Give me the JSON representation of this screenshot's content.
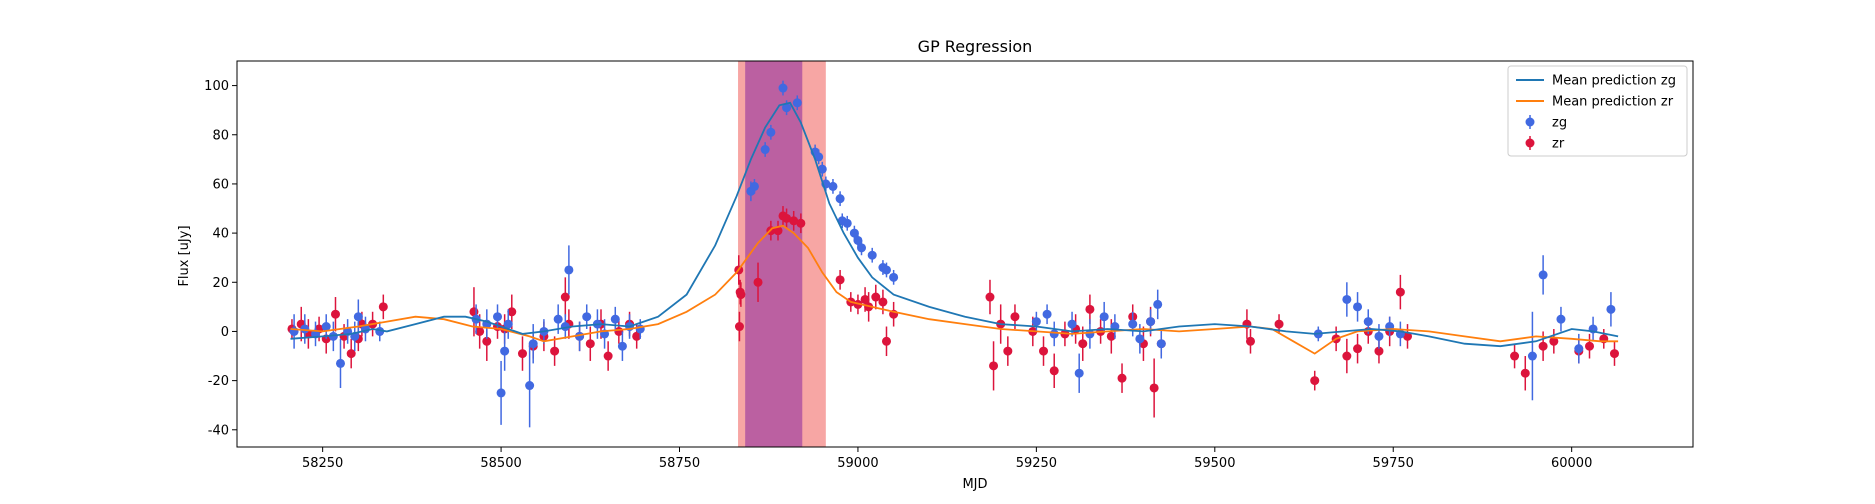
{
  "chart_data": {
    "type": "scatter",
    "title": "GP Regression",
    "xlabel": "MJD",
    "ylabel": "Flux [uJy]",
    "xlim": [
      58130,
      60170
    ],
    "ylim": [
      -47,
      110
    ],
    "xticks": [
      58250,
      58500,
      58750,
      59000,
      59250,
      59500,
      59750,
      60000
    ],
    "yticks": [
      -40,
      -20,
      0,
      20,
      40,
      60,
      80,
      100
    ],
    "grid": false,
    "legend_position": "top-right",
    "colors": {
      "mean_zg": "#1f77b4",
      "mean_zr": "#ff7f0e",
      "zg": "#4169e1",
      "zr": "#dc143c",
      "band_wide": "#f4807d",
      "band_narrow": "#9b3ba0"
    },
    "shaded_regions": [
      {
        "x0": 58832,
        "x1": 58955,
        "color": "#f4807d",
        "opacity": 0.7
      },
      {
        "x0": 58842,
        "x1": 58922,
        "color": "#9b3ba0",
        "opacity": 0.65
      }
    ],
    "legend": [
      "Mean prediction zg",
      "Mean prediction zr",
      "zg",
      "zr"
    ],
    "series": [
      {
        "name": "Mean prediction zg",
        "kind": "line",
        "points": [
          [
            58205,
            -3
          ],
          [
            58250,
            -2
          ],
          [
            58290,
            -1
          ],
          [
            58320,
            1
          ],
          [
            58340,
            0
          ],
          [
            58380,
            3
          ],
          [
            58420,
            6
          ],
          [
            58450,
            6
          ],
          [
            58480,
            4
          ],
          [
            58510,
            1
          ],
          [
            58530,
            -1
          ],
          [
            58560,
            0
          ],
          [
            58600,
            2
          ],
          [
            58640,
            3
          ],
          [
            58680,
            2
          ],
          [
            58720,
            6
          ],
          [
            58760,
            15
          ],
          [
            58800,
            35
          ],
          [
            58830,
            55
          ],
          [
            58850,
            70
          ],
          [
            58870,
            83
          ],
          [
            58890,
            92
          ],
          [
            58905,
            93
          ],
          [
            58920,
            85
          ],
          [
            58940,
            70
          ],
          [
            58960,
            52
          ],
          [
            58980,
            40
          ],
          [
            59000,
            30
          ],
          [
            59020,
            22
          ],
          [
            59050,
            15
          ],
          [
            59100,
            10
          ],
          [
            59150,
            6
          ],
          [
            59200,
            3
          ],
          [
            59250,
            2
          ],
          [
            59300,
            0
          ],
          [
            59350,
            1
          ],
          [
            59400,
            0
          ],
          [
            59450,
            2
          ],
          [
            59500,
            3
          ],
          [
            59550,
            2
          ],
          [
            59600,
            0
          ],
          [
            59640,
            -1
          ],
          [
            59680,
            0
          ],
          [
            59720,
            1
          ],
          [
            59760,
            0
          ],
          [
            59800,
            -2
          ],
          [
            59850,
            -5
          ],
          [
            59900,
            -6
          ],
          [
            59950,
            -4
          ],
          [
            60000,
            1
          ],
          [
            60030,
            0
          ],
          [
            60065,
            -2
          ]
        ]
      },
      {
        "name": "Mean prediction zr",
        "kind": "line",
        "points": [
          [
            58205,
            1
          ],
          [
            58250,
            0
          ],
          [
            58300,
            2
          ],
          [
            58340,
            4
          ],
          [
            58380,
            6
          ],
          [
            58420,
            5
          ],
          [
            58460,
            2
          ],
          [
            58500,
            1
          ],
          [
            58540,
            -2
          ],
          [
            58560,
            -4
          ],
          [
            58600,
            -2
          ],
          [
            58640,
            0
          ],
          [
            58680,
            1
          ],
          [
            58720,
            3
          ],
          [
            58760,
            8
          ],
          [
            58800,
            15
          ],
          [
            58830,
            24
          ],
          [
            58860,
            36
          ],
          [
            58880,
            42
          ],
          [
            58895,
            43
          ],
          [
            58910,
            40
          ],
          [
            58930,
            34
          ],
          [
            58950,
            24
          ],
          [
            58970,
            16
          ],
          [
            58990,
            12
          ],
          [
            59020,
            10
          ],
          [
            59050,
            8
          ],
          [
            59100,
            5
          ],
          [
            59150,
            3
          ],
          [
            59200,
            1
          ],
          [
            59250,
            0
          ],
          [
            59300,
            -1
          ],
          [
            59350,
            0
          ],
          [
            59400,
            1
          ],
          [
            59450,
            0
          ],
          [
            59500,
            1
          ],
          [
            59550,
            2
          ],
          [
            59580,
            1
          ],
          [
            59610,
            -4
          ],
          [
            59640,
            -9
          ],
          [
            59670,
            -3
          ],
          [
            59700,
            0
          ],
          [
            59750,
            1
          ],
          [
            59800,
            0
          ],
          [
            59850,
            -2
          ],
          [
            59900,
            -4
          ],
          [
            59950,
            -2
          ],
          [
            60000,
            -3
          ],
          [
            60040,
            -4
          ],
          [
            60065,
            -4
          ]
        ]
      },
      {
        "name": "zg",
        "kind": "errorbar",
        "points": [
          [
            58210,
            0,
            7
          ],
          [
            58225,
            1,
            6
          ],
          [
            58240,
            -1,
            5
          ],
          [
            58255,
            2,
            5
          ],
          [
            58265,
            -2,
            6
          ],
          [
            58275,
            -13,
            10
          ],
          [
            58285,
            0,
            5
          ],
          [
            58295,
            -2,
            6
          ],
          [
            58300,
            6,
            7
          ],
          [
            58310,
            1,
            5
          ],
          [
            58330,
            0,
            4
          ],
          [
            58465,
            5,
            6
          ],
          [
            58480,
            3,
            6
          ],
          [
            58495,
            6,
            5
          ],
          [
            58505,
            -8,
            8
          ],
          [
            58500,
            -25,
            13
          ],
          [
            58510,
            3,
            6
          ],
          [
            58540,
            -22,
            17
          ],
          [
            58545,
            -5,
            8
          ],
          [
            58560,
            0,
            5
          ],
          [
            58580,
            5,
            6
          ],
          [
            58590,
            2,
            5
          ],
          [
            58595,
            25,
            10
          ],
          [
            58610,
            -2,
            6
          ],
          [
            58620,
            6,
            5
          ],
          [
            58635,
            3,
            6
          ],
          [
            58645,
            -1,
            6
          ],
          [
            58660,
            5,
            5
          ],
          [
            58670,
            -6,
            6
          ],
          [
            58680,
            2,
            5
          ],
          [
            58695,
            1,
            4
          ],
          [
            58850,
            57,
            4
          ],
          [
            58855,
            59,
            3
          ],
          [
            58870,
            74,
            3
          ],
          [
            58878,
            81,
            3
          ],
          [
            58895,
            99,
            3
          ],
          [
            58900,
            91,
            3
          ],
          [
            58915,
            93,
            3
          ],
          [
            58940,
            73,
            3
          ],
          [
            58945,
            71,
            3
          ],
          [
            58950,
            66,
            3
          ],
          [
            58955,
            60,
            3
          ],
          [
            58965,
            59,
            3
          ],
          [
            58975,
            54,
            3
          ],
          [
            58978,
            45,
            3
          ],
          [
            58985,
            44,
            3
          ],
          [
            58995,
            40,
            3
          ],
          [
            59000,
            37,
            3
          ],
          [
            59005,
            34,
            3
          ],
          [
            59020,
            31,
            3
          ],
          [
            59035,
            26,
            3
          ],
          [
            59040,
            25,
            3
          ],
          [
            59050,
            22,
            3
          ],
          [
            59250,
            4,
            4
          ],
          [
            59265,
            7,
            4
          ],
          [
            59275,
            -1,
            5
          ],
          [
            59300,
            3,
            5
          ],
          [
            59310,
            -17,
            8
          ],
          [
            59325,
            -1,
            6
          ],
          [
            59345,
            6,
            6
          ],
          [
            59360,
            2,
            5
          ],
          [
            59385,
            3,
            5
          ],
          [
            59395,
            -3,
            6
          ],
          [
            59410,
            4,
            5
          ],
          [
            59420,
            11,
            6
          ],
          [
            59425,
            -5,
            6
          ],
          [
            59645,
            -1,
            3
          ],
          [
            59685,
            13,
            7
          ],
          [
            59700,
            10,
            6
          ],
          [
            59715,
            4,
            5
          ],
          [
            59730,
            -2,
            5
          ],
          [
            59745,
            2,
            4
          ],
          [
            59760,
            -1,
            5
          ],
          [
            59960,
            23,
            8
          ],
          [
            59945,
            -10,
            18
          ],
          [
            59985,
            5,
            5
          ],
          [
            60010,
            -7,
            6
          ],
          [
            60030,
            1,
            5
          ],
          [
            60055,
            9,
            7
          ]
        ]
      },
      {
        "name": "zr",
        "kind": "errorbar",
        "points": [
          [
            58207,
            1,
            4
          ],
          [
            58220,
            3,
            7
          ],
          [
            58230,
            -1,
            6
          ],
          [
            58245,
            1,
            5
          ],
          [
            58255,
            -3,
            6
          ],
          [
            58268,
            7,
            7
          ],
          [
            58280,
            -2,
            5
          ],
          [
            58290,
            -9,
            6
          ],
          [
            58300,
            -3,
            5
          ],
          [
            58305,
            3,
            5
          ],
          [
            58320,
            3,
            5
          ],
          [
            58335,
            10,
            5
          ],
          [
            58462,
            8,
            10
          ],
          [
            58470,
            0,
            7
          ],
          [
            58480,
            -4,
            8
          ],
          [
            58495,
            2,
            5
          ],
          [
            58505,
            1,
            6
          ],
          [
            58515,
            8,
            7
          ],
          [
            58530,
            -9,
            7
          ],
          [
            58545,
            -6,
            5
          ],
          [
            58560,
            -2,
            6
          ],
          [
            58575,
            -8,
            6
          ],
          [
            58590,
            14,
            8
          ],
          [
            58595,
            3,
            6
          ],
          [
            58610,
            -2,
            6
          ],
          [
            58625,
            -5,
            7
          ],
          [
            58640,
            3,
            6
          ],
          [
            58650,
            -10,
            6
          ],
          [
            58665,
            0,
            5
          ],
          [
            58680,
            3,
            5
          ],
          [
            58690,
            -2,
            5
          ],
          [
            58833,
            25,
            6
          ],
          [
            58835,
            16,
            5
          ],
          [
            58836,
            15,
            5
          ],
          [
            58834,
            2,
            6
          ],
          [
            58860,
            20,
            8
          ],
          [
            58878,
            41,
            4
          ],
          [
            58888,
            41,
            4
          ],
          [
            58895,
            47,
            4
          ],
          [
            58900,
            46,
            4
          ],
          [
            58910,
            45,
            4
          ],
          [
            58920,
            44,
            4
          ],
          [
            58975,
            21,
            4
          ],
          [
            58990,
            12,
            4
          ],
          [
            59000,
            11,
            4
          ],
          [
            59010,
            13,
            5
          ],
          [
            59015,
            10,
            6
          ],
          [
            59025,
            14,
            5
          ],
          [
            59035,
            12,
            5
          ],
          [
            59040,
            -4,
            6
          ],
          [
            59050,
            7,
            5
          ],
          [
            59185,
            14,
            7
          ],
          [
            59190,
            -14,
            10
          ],
          [
            59200,
            3,
            8
          ],
          [
            59210,
            -8,
            6
          ],
          [
            59220,
            6,
            5
          ],
          [
            59245,
            0,
            6
          ],
          [
            59260,
            -8,
            6
          ],
          [
            59275,
            -16,
            7
          ],
          [
            59290,
            -1,
            5
          ],
          [
            59305,
            1,
            6
          ],
          [
            59315,
            -5,
            7
          ],
          [
            59325,
            9,
            6
          ],
          [
            59340,
            0,
            5
          ],
          [
            59355,
            -2,
            7
          ],
          [
            59370,
            -19,
            6
          ],
          [
            59385,
            6,
            5
          ],
          [
            59400,
            -5,
            7
          ],
          [
            59410,
            4,
            6
          ],
          [
            59415,
            -23,
            12
          ],
          [
            59425,
            -5,
            5
          ],
          [
            59545,
            3,
            6
          ],
          [
            59550,
            -4,
            5
          ],
          [
            59590,
            3,
            4
          ],
          [
            59640,
            -20,
            4
          ],
          [
            59670,
            -3,
            5
          ],
          [
            59685,
            -10,
            7
          ],
          [
            59700,
            -7,
            6
          ],
          [
            59715,
            0,
            5
          ],
          [
            59730,
            -8,
            5
          ],
          [
            59745,
            0,
            6
          ],
          [
            59760,
            16,
            7
          ],
          [
            59770,
            -2,
            5
          ],
          [
            59920,
            -10,
            5
          ],
          [
            59935,
            -17,
            7
          ],
          [
            59960,
            -6,
            6
          ],
          [
            59975,
            -4,
            5
          ],
          [
            60010,
            -8,
            5
          ],
          [
            60025,
            -6,
            5
          ],
          [
            60045,
            -3,
            4
          ],
          [
            60060,
            -9,
            5
          ]
        ]
      }
    ]
  }
}
